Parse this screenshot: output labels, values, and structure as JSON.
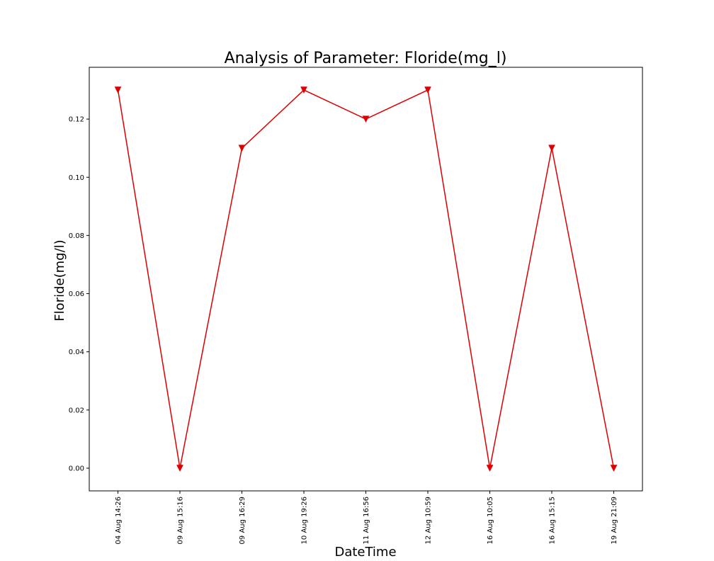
{
  "chart_data": {
    "type": "line",
    "title": "Analysis of Parameter: Floride(mg_l)",
    "xlabel": "DateTime",
    "ylabel": "Floride(mg/l)",
    "categories": [
      "04 Aug 14:26",
      "09 Aug 15:16",
      "09 Aug 16:29",
      "10 Aug 19:26",
      "11 Aug 16:56",
      "12 Aug 10:59",
      "16 Aug 10:05",
      "16 Aug 15:15",
      "19 Aug 21:09"
    ],
    "values": [
      0.13,
      0.0,
      0.11,
      0.13,
      0.12,
      0.13,
      0.0,
      0.11,
      0.0
    ],
    "ylim": [
      -0.0078,
      0.1378
    ],
    "yticks": [
      "0.00",
      "0.02",
      "0.04",
      "0.06",
      "0.08",
      "0.10",
      "0.12"
    ],
    "color": "#dd0000",
    "marker": "triangle-down",
    "grid": false,
    "legend": "none"
  }
}
